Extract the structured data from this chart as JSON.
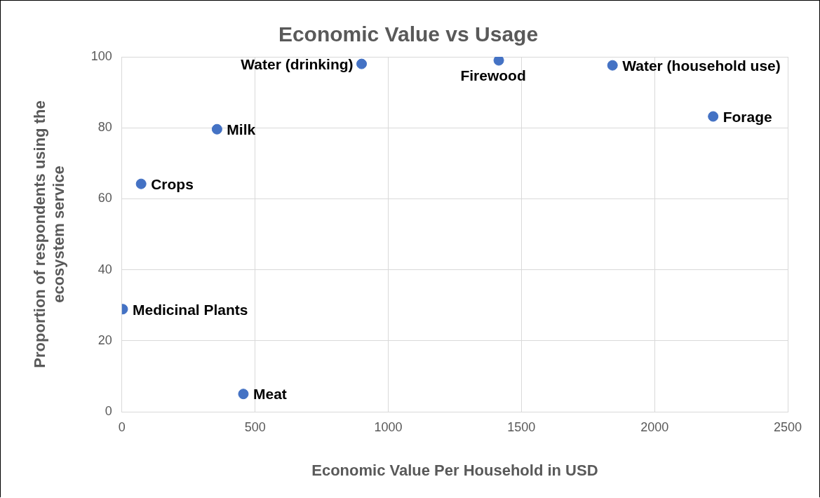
{
  "chart_data": {
    "type": "scatter",
    "title": "Economic Value vs Usage",
    "xlabel": "Economic Value Per Household in USD",
    "ylabel": "Proportion of respondents using the ecosystem service",
    "x": [
      900,
      1415,
      1842,
      2220,
      357,
      72,
      3,
      456
    ],
    "series": [
      {
        "color": "#4472c4",
        "values": [
          98,
          99,
          97.6,
          83.2,
          79.6,
          64.2,
          28.9,
          5
        ]
      }
    ],
    "annotations": [
      {
        "text": "Water (drinking)",
        "x": 900,
        "y": 98
      },
      {
        "text": "Firewood",
        "x": 1415,
        "y": 99
      },
      {
        "text": "Water (household use)",
        "x": 1842,
        "y": 97.6
      },
      {
        "text": "Forage",
        "x": 2220,
        "y": 83.2
      },
      {
        "text": "Milk",
        "x": 357,
        "y": 79.6
      },
      {
        "text": "Crops",
        "x": 72,
        "y": 64.2
      },
      {
        "text": "Medicinal Plants",
        "x": 3,
        "y": 28.9
      },
      {
        "text": "Meat",
        "x": 456,
        "y": 5
      }
    ],
    "xlim": [
      0,
      2500
    ],
    "xticks": [
      0,
      500,
      1000,
      1500,
      2000,
      2500
    ],
    "ylim": [
      0,
      100
    ],
    "yticks": [
      0,
      20,
      40,
      60,
      80,
      100
    ],
    "grid": true,
    "legend": false,
    "marker": "circle"
  }
}
